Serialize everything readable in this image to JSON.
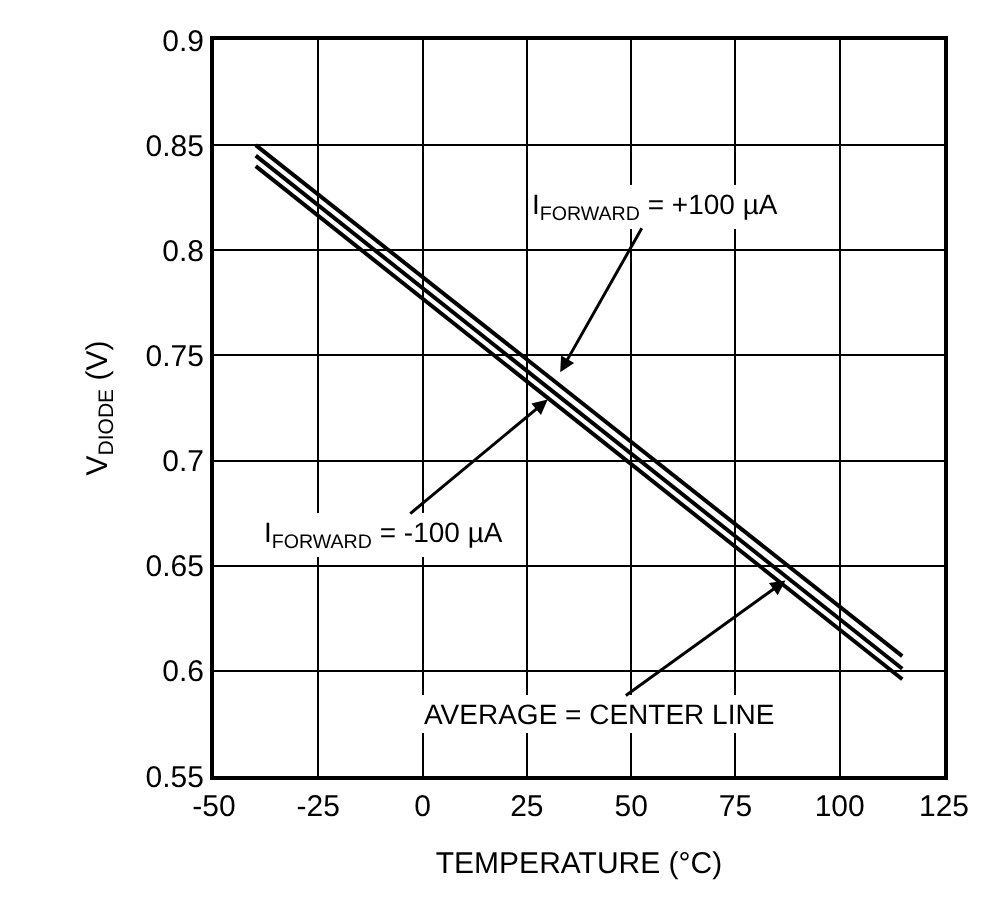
{
  "chart_data": {
    "type": "line",
    "xlabel": "TEMPERATURE (°C)",
    "ylabel": "V$_{DIODE}$ (V)",
    "x": [
      -40,
      115
    ],
    "series": [
      {
        "color": "#000000",
        "values": [
          0.85,
          0.607
        ]
      },
      {
        "color": "#000000",
        "values": [
          0.845,
          0.601
        ]
      },
      {
        "color": "#000000",
        "values": [
          0.84,
          0.596
        ]
      }
    ],
    "annotations": [
      {
        "text": "I$_{FORWARD}$ = +100 µA",
        "x": 33,
        "y": 0.742
      },
      {
        "text": "I$_{FORWARD}$ = -100 µA",
        "x": 30,
        "y": 0.729
      },
      {
        "text": "AVERAGE = CENTER LINE",
        "x": 87,
        "y": 0.643
      }
    ],
    "xlim": [
      -50,
      125
    ],
    "xticks": [
      -50,
      -25,
      0,
      25,
      50,
      75,
      100,
      125
    ],
    "ylim": [
      0.55,
      0.9
    ],
    "yticks": [
      0.55,
      0.6,
      0.65,
      0.7,
      0.75,
      0.8,
      0.85,
      0.9
    ],
    "grid": true,
    "marker": "none",
    "line_style": "solid"
  }
}
